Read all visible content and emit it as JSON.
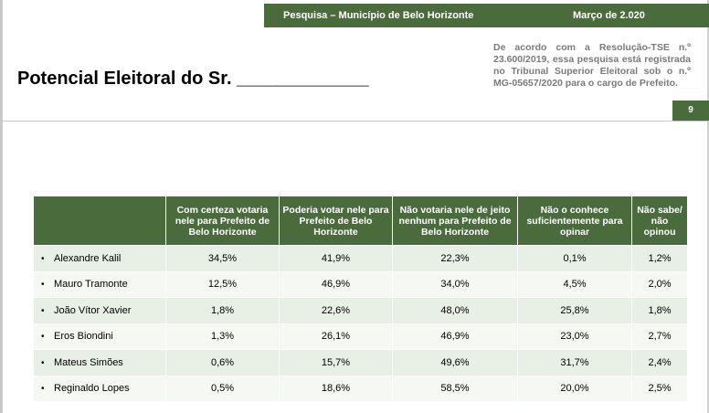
{
  "header": {
    "survey_label": "Pesquisa – Município de Belo Horizonte",
    "date_label": "Março de  2.020"
  },
  "title": "Potencial Eleitoral do Sr. _____________",
  "registration_note": "De acordo com a Resolução-TSE n.º 23.600/2019, essa pesquisa está registrada no Tribunal Superior Eleitoral sob o n.º MG-05657/2020 para o cargo de Prefeito.",
  "page_number": "9",
  "table": {
    "columns": [
      "",
      "Com certeza votaria nele para Prefeito de Belo Horizonte",
      "Poderia votar nele para Prefeito de Belo Horizonte",
      "Não votaria nele de jeito nenhum para Prefeito de Belo Horizonte",
      "Não o conhece suficientemente para opinar",
      "Não sabe/ não opinou"
    ],
    "bullet": "•",
    "rows": [
      {
        "name": "Alexandre Kalil",
        "values": [
          "34,5%",
          "41,9%",
          "22,3%",
          "0,1%",
          "1,2%"
        ]
      },
      {
        "name": "Mauro Tramonte",
        "values": [
          "12,5%",
          "46,9%",
          "34,0%",
          "4,5%",
          "2,0%"
        ]
      },
      {
        "name": "João Vítor Xavier",
        "values": [
          "1,8%",
          "22,6%",
          "48,0%",
          "25,8%",
          "1,8%"
        ]
      },
      {
        "name": "Eros Biondini",
        "values": [
          "1,3%",
          "26,1%",
          "46,9%",
          "23,0%",
          "2,7%"
        ]
      },
      {
        "name": "Mateus Simões",
        "values": [
          "0,6%",
          "15,7%",
          "49,6%",
          "31,7%",
          "2,4%"
        ]
      },
      {
        "name": "Reginaldo Lopes",
        "values": [
          "0,5%",
          "18,6%",
          "58,5%",
          "20,0%",
          "2,5%"
        ]
      }
    ]
  }
}
